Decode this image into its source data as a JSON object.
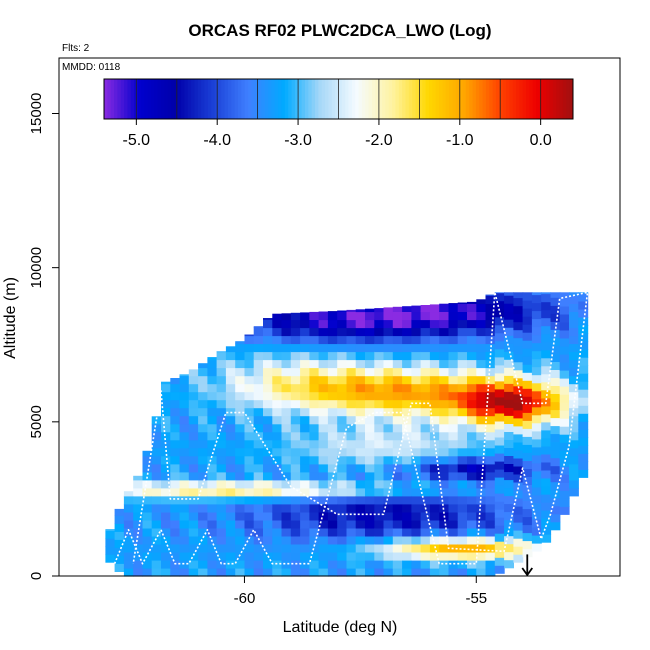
{
  "chart_data": {
    "type": "heatmap",
    "title": "ORCAS RF02 PLWC2DCA_LWO (Log)",
    "notes": {
      "flights": "Flts: 2",
      "date": "MMDD: 0118"
    },
    "xlabel": "Latitude (deg N)",
    "ylabel": "Altitude (m)",
    "xlim": [
      -64.0,
      -51.9
    ],
    "ylim": [
      0,
      16800
    ],
    "x_ticks": [
      -60,
      -55
    ],
    "x_tick_labels": [
      "-60",
      "-55"
    ],
    "y_ticks": [
      0,
      5000,
      10000,
      15000
    ],
    "y_tick_labels": [
      "0",
      "5000",
      "10000",
      "15000"
    ],
    "colorbar": {
      "min": -5.4,
      "max": 0.4,
      "ticks": [
        -5.0,
        -4.0,
        -3.0,
        -2.0,
        -1.0,
        0.0
      ],
      "tick_labels": [
        "-5.0",
        "-4.0",
        "-3.0",
        "-2.0",
        "-1.0",
        "0.0"
      ],
      "colors": [
        "#8a2be2",
        "#0000cd",
        "#0000aa",
        "#1a3fd6",
        "#3f7fff",
        "#00aaff",
        "#a8d8f8",
        "#f5fbff",
        "#fff3a0",
        "#ffd700",
        "#ffa500",
        "#ff4000",
        "#ee0000",
        "#a01010"
      ]
    },
    "field": {
      "lat_range": [
        -63.0,
        -52.6
      ],
      "lat_step": 0.2,
      "alt_step": 260,
      "edges": [
        [
          -63.0,
          600,
          1200
        ],
        [
          -62.6,
          0,
          2500
        ],
        [
          -62.2,
          0,
          3500
        ],
        [
          -61.7,
          0,
          6300
        ],
        [
          -61.2,
          0,
          6600
        ],
        [
          -60.6,
          0,
          7200
        ],
        [
          -60.0,
          0,
          7700
        ],
        [
          -59.4,
          0,
          8500
        ],
        [
          -58.0,
          0,
          8600
        ],
        [
          -56.0,
          0,
          8800
        ],
        [
          -55.0,
          0,
          8900
        ],
        [
          -54.6,
          0,
          9200
        ],
        [
          -53.6,
          900,
          9200
        ],
        [
          -53.2,
          1700,
          9200
        ],
        [
          -52.6,
          3500,
          9200
        ]
      ],
      "features": [
        {
          "lat": -54.2,
          "alt": 5600,
          "sigma_lat": 0.8,
          "sigma_alt": 500,
          "amp": 3.0
        },
        {
          "lat": -56.0,
          "alt": 5900,
          "sigma_lat": 1.6,
          "sigma_alt": 600,
          "amp": 1.7
        },
        {
          "lat": -57.8,
          "alt": 6100,
          "sigma_lat": 1.6,
          "sigma_alt": 500,
          "amp": 1.0
        },
        {
          "lat": -55.3,
          "alt": 900,
          "sigma_lat": 1.3,
          "sigma_alt": 250,
          "amp": 2.4
        },
        {
          "lat": -60.0,
          "alt": 2800,
          "sigma_lat": 2.5,
          "sigma_alt": 200,
          "amp": 1.7
        },
        {
          "lat": -57.0,
          "alt": 4200,
          "sigma_lat": 1.5,
          "sigma_alt": 500,
          "amp": 0.8
        },
        {
          "lat": -59.0,
          "alt": 6400,
          "sigma_lat": 1.2,
          "sigma_alt": 700,
          "amp": 0.7
        },
        {
          "lat": -55.0,
          "alt": 3500,
          "sigma_lat": 1.0,
          "sigma_alt": 250,
          "amp": -1.4
        },
        {
          "lat": -57.0,
          "alt": 2000,
          "sigma_lat": 2.0,
          "sigma_alt": 600,
          "amp": -1.2
        },
        {
          "lat": -55.5,
          "alt": 8600,
          "sigma_lat": 1.6,
          "sigma_alt": 500,
          "amp": -1.6
        },
        {
          "lat": -58.0,
          "alt": 8300,
          "sigma_lat": 1.5,
          "sigma_alt": 500,
          "amp": -1.5
        }
      ],
      "base_value": -3.3
    },
    "flight_track": [
      [
        -62.8,
        400
      ],
      [
        -62.5,
        1500
      ],
      [
        -62.2,
        400
      ],
      [
        -61.8,
        1500
      ],
      [
        -61.5,
        400
      ],
      [
        -61.2,
        400
      ],
      [
        -60.8,
        1500
      ],
      [
        -60.5,
        400
      ],
      [
        -60.2,
        400
      ],
      [
        -59.8,
        1500
      ],
      [
        -59.4,
        400
      ],
      [
        -58.6,
        400
      ],
      [
        -57.8,
        4800
      ],
      [
        -57.2,
        5300
      ],
      [
        -56.6,
        5300
      ],
      [
        -55.8,
        400
      ],
      [
        -55.0,
        400
      ],
      [
        -54.6,
        9200
      ],
      [
        -54.0,
        5600
      ],
      [
        -53.5,
        5600
      ],
      [
        -53.2,
        9000
      ],
      [
        -52.6,
        9200
      ],
      [
        -52.6,
        9200
      ],
      [
        -53.0,
        4200
      ],
      [
        -53.4,
        2000
      ],
      [
        -53.6,
        1200
      ],
      [
        -54.0,
        3500
      ],
      [
        -54.4,
        800
      ],
      [
        -55.6,
        900
      ],
      [
        -56.0,
        5600
      ],
      [
        -56.4,
        5600
      ],
      [
        -57.0,
        2000
      ],
      [
        -58.0,
        2000
      ],
      [
        -59.0,
        2900
      ],
      [
        -60.0,
        5300
      ],
      [
        -60.4,
        5300
      ],
      [
        -61.0,
        2500
      ],
      [
        -61.6,
        2500
      ],
      [
        -61.8,
        6000
      ],
      [
        -62.4,
        400
      ]
    ],
    "marker": {
      "lat": -53.9,
      "alt": 700,
      "symbol": "down-arrow"
    }
  }
}
